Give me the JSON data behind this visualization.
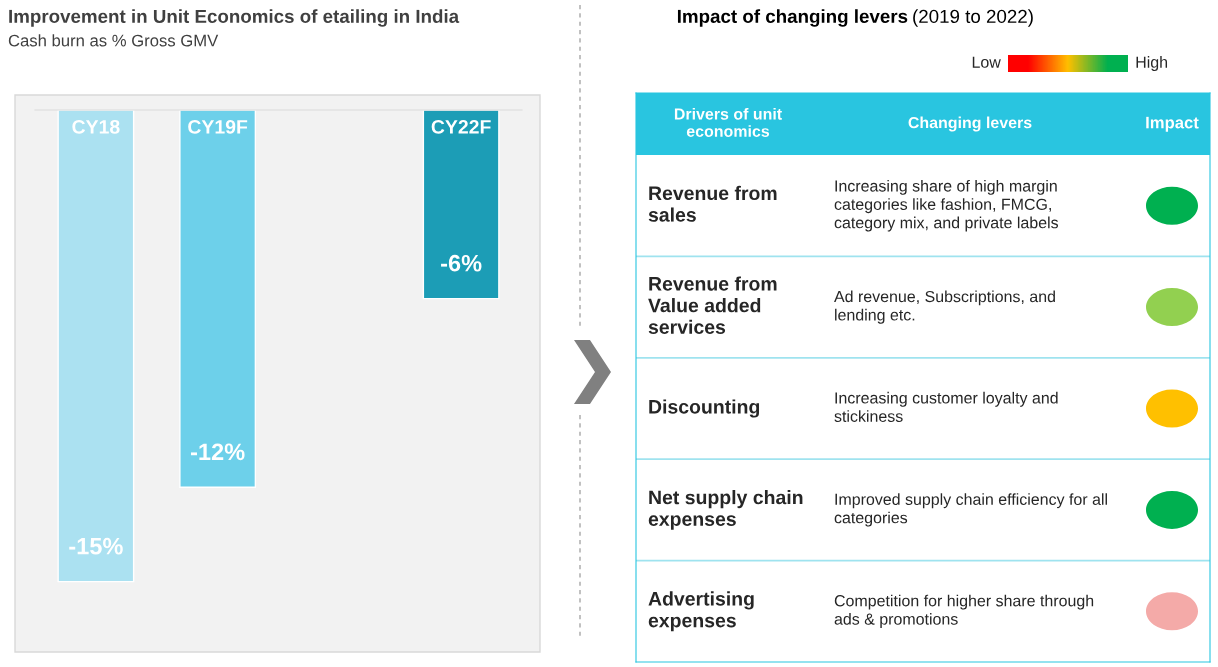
{
  "chart_data": [
    {
      "type": "bar",
      "title": "Improvement in Unit Economics of etailing in India",
      "subtitle": "Cash burn as % Gross GMV",
      "categories": [
        "CY18",
        "CY19F",
        null,
        "CY22F"
      ],
      "values": [
        -15,
        -12,
        null,
        -6
      ],
      "colors": [
        "#abe1f1",
        "#6dd0ea",
        null,
        "#1c9db6"
      ],
      "value_labels": [
        "-15%",
        "-12%",
        null,
        "-6%"
      ]
    },
    {
      "type": "other",
      "title": "Impact of changing levers",
      "subtitle": "(2019 to 2022)",
      "categories": [
        "Impact"
      ],
      "y_categories": [
        "Revenue from sales",
        "Revenue from Value added services",
        "Discounting",
        "Net supply chain expenses",
        "Advertising expenses"
      ],
      "y2_categories": [
        "Increasing share of high margin categories like fashion, FMCG, category mix, and private labels",
        "Ad revenue, Subscriptions, and lending etc.",
        "Increasing customer loyalty and stickiness",
        "Improved supply chain efficiency for all categories",
        "Competition for higher share through ads & promotions"
      ],
      "colors": [
        "#00b050",
        "#92d050",
        "#ffc000",
        "#00b050",
        "#f4aaa8"
      ],
      "annotations": [
        "Drivers of unit economics",
        "Changing levers",
        "Low",
        "High"
      ]
    }
  ]
}
